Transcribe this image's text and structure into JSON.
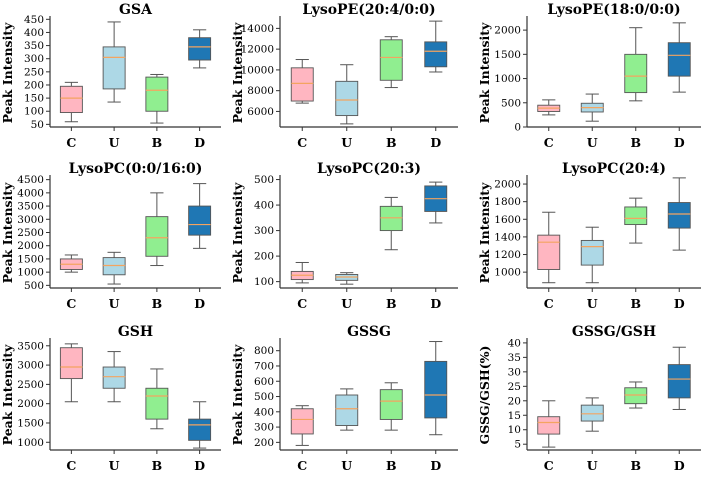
{
  "colors": {
    "C": "#ffb6c1",
    "U": "#add8e6",
    "B": "#90ee90",
    "D": "#1f77b4",
    "median": "#f4a460",
    "whisker": "#555555",
    "axis": "#333333"
  },
  "chart_data": [
    {
      "type": "box",
      "title": "GSA",
      "ylabel": "Peak Intensity",
      "xlabel": "",
      "categories": [
        "C",
        "U",
        "B",
        "D"
      ],
      "ylim": [
        40,
        455
      ],
      "yticks": [
        50,
        100,
        150,
        200,
        250,
        300,
        350,
        400,
        450
      ],
      "boxes": [
        {
          "min": 60,
          "q1": 95,
          "median": 150,
          "q3": 195,
          "max": 210
        },
        {
          "min": 135,
          "q1": 185,
          "median": 305,
          "q3": 345,
          "max": 440
        },
        {
          "min": 55,
          "q1": 100,
          "median": 180,
          "q3": 230,
          "max": 240
        },
        {
          "min": 265,
          "q1": 295,
          "median": 345,
          "q3": 380,
          "max": 410
        }
      ]
    },
    {
      "type": "box",
      "title": "LysoPE(20:4/0:0)",
      "ylabel": "Peak Intensity",
      "xlabel": "",
      "categories": [
        "C",
        "U",
        "B",
        "D"
      ],
      "ylim": [
        4500,
        15000
      ],
      "yticks": [
        6000,
        8000,
        10000,
        12000,
        14000
      ],
      "boxes": [
        {
          "min": 6800,
          "q1": 7000,
          "median": 8700,
          "q3": 10200,
          "max": 11000
        },
        {
          "min": 4800,
          "q1": 5600,
          "median": 7100,
          "q3": 8900,
          "max": 10500
        },
        {
          "min": 8300,
          "q1": 9000,
          "median": 11200,
          "q3": 12900,
          "max": 13200
        },
        {
          "min": 9800,
          "q1": 10300,
          "median": 11800,
          "q3": 12700,
          "max": 14700
        }
      ]
    },
    {
      "type": "box",
      "title": "LysoPE(18:0/0:0)",
      "ylabel": "Peak Intensity",
      "xlabel": "",
      "categories": [
        "C",
        "U",
        "B",
        "D"
      ],
      "ylim": [
        0,
        2250
      ],
      "yticks": [
        0,
        500,
        1000,
        1500,
        2000
      ],
      "boxes": [
        {
          "min": 250,
          "q1": 320,
          "median": 390,
          "q3": 450,
          "max": 560
        },
        {
          "min": 120,
          "q1": 310,
          "median": 400,
          "q3": 490,
          "max": 680
        },
        {
          "min": 540,
          "q1": 710,
          "median": 1050,
          "q3": 1500,
          "max": 2050
        },
        {
          "min": 720,
          "q1": 1050,
          "median": 1480,
          "q3": 1740,
          "max": 2150
        }
      ]
    },
    {
      "type": "box",
      "title": "LysoPC(0:0/16:0)",
      "ylabel": "Peak Intensity",
      "xlabel": "",
      "categories": [
        "C",
        "U",
        "B",
        "D"
      ],
      "ylim": [
        400,
        4600
      ],
      "yticks": [
        500,
        1000,
        1500,
        2000,
        2500,
        3000,
        3500,
        4000,
        4500
      ],
      "boxes": [
        {
          "min": 1000,
          "q1": 1100,
          "median": 1300,
          "q3": 1500,
          "max": 1650
        },
        {
          "min": 550,
          "q1": 900,
          "median": 1250,
          "q3": 1550,
          "max": 1750
        },
        {
          "min": 1250,
          "q1": 1600,
          "median": 2300,
          "q3": 3100,
          "max": 4000
        },
        {
          "min": 1900,
          "q1": 2400,
          "median": 2800,
          "q3": 3500,
          "max": 4350
        }
      ]
    },
    {
      "type": "box",
      "title": "LysoPC(20:3)",
      "ylabel": "Peak Intensity",
      "xlabel": "",
      "categories": [
        "C",
        "U",
        "B",
        "D"
      ],
      "ylim": [
        75,
        510
      ],
      "yticks": [
        100,
        200,
        300,
        400,
        500
      ],
      "boxes": [
        {
          "min": 95,
          "q1": 108,
          "median": 125,
          "q3": 140,
          "max": 175
        },
        {
          "min": 90,
          "q1": 105,
          "median": 118,
          "q3": 128,
          "max": 135
        },
        {
          "min": 225,
          "q1": 300,
          "median": 350,
          "q3": 395,
          "max": 430
        },
        {
          "min": 330,
          "q1": 375,
          "median": 425,
          "q3": 475,
          "max": 490
        }
      ]
    },
    {
      "type": "box",
      "title": "LysoPC(20:4)",
      "ylabel": "Peak Intensity",
      "xlabel": "",
      "categories": [
        "C",
        "U",
        "B",
        "D"
      ],
      "ylim": [
        820,
        2080
      ],
      "yticks": [
        1000,
        1200,
        1400,
        1600,
        1800,
        2000
      ],
      "boxes": [
        {
          "min": 880,
          "q1": 1030,
          "median": 1340,
          "q3": 1420,
          "max": 1680
        },
        {
          "min": 880,
          "q1": 1080,
          "median": 1290,
          "q3": 1360,
          "max": 1510
        },
        {
          "min": 1330,
          "q1": 1540,
          "median": 1610,
          "q3": 1740,
          "max": 1840
        },
        {
          "min": 1250,
          "q1": 1500,
          "median": 1660,
          "q3": 1790,
          "max": 2070
        }
      ]
    },
    {
      "type": "box",
      "title": "GSH",
      "ylabel": "Peak Intensity",
      "xlabel": "",
      "categories": [
        "C",
        "U",
        "B",
        "D"
      ],
      "ylim": [
        800,
        3650
      ],
      "yticks": [
        1000,
        1500,
        2000,
        2500,
        3000,
        3500
      ],
      "boxes": [
        {
          "min": 2050,
          "q1": 2650,
          "median": 2950,
          "q3": 3450,
          "max": 3550
        },
        {
          "min": 2050,
          "q1": 2400,
          "median": 2700,
          "q3": 2950,
          "max": 3350
        },
        {
          "min": 1350,
          "q1": 1600,
          "median": 2200,
          "q3": 2400,
          "max": 2900
        },
        {
          "min": 850,
          "q1": 1050,
          "median": 1450,
          "q3": 1600,
          "max": 2050
        }
      ]
    },
    {
      "type": "box",
      "title": "GSSG",
      "ylabel": "Peak Intensity",
      "xlabel": "",
      "categories": [
        "C",
        "U",
        "B",
        "D"
      ],
      "ylim": [
        150,
        870
      ],
      "yticks": [
        200,
        300,
        400,
        500,
        600,
        700,
        800
      ],
      "boxes": [
        {
          "min": 180,
          "q1": 255,
          "median": 350,
          "q3": 420,
          "max": 440
        },
        {
          "min": 280,
          "q1": 310,
          "median": 420,
          "q3": 510,
          "max": 550
        },
        {
          "min": 280,
          "q1": 350,
          "median": 470,
          "q3": 545,
          "max": 590
        },
        {
          "min": 250,
          "q1": 360,
          "median": 510,
          "q3": 730,
          "max": 860
        }
      ]
    },
    {
      "type": "box",
      "title": "GSSG/GSH",
      "ylabel": "GSSG/GSH(%)",
      "xlabel": "",
      "categories": [
        "C",
        "U",
        "B",
        "D"
      ],
      "ylim": [
        3,
        41
      ],
      "yticks": [
        5,
        10,
        15,
        20,
        25,
        30,
        35,
        40
      ],
      "boxes": [
        {
          "min": 4,
          "q1": 8.5,
          "median": 12.5,
          "q3": 14.5,
          "max": 20
        },
        {
          "min": 9.5,
          "q1": 13,
          "median": 15.5,
          "q3": 18.5,
          "max": 21
        },
        {
          "min": 17.5,
          "q1": 19,
          "median": 22,
          "q3": 24.5,
          "max": 26.5
        },
        {
          "min": 17,
          "q1": 21,
          "median": 27.5,
          "q3": 32.5,
          "max": 38.5
        }
      ]
    }
  ]
}
